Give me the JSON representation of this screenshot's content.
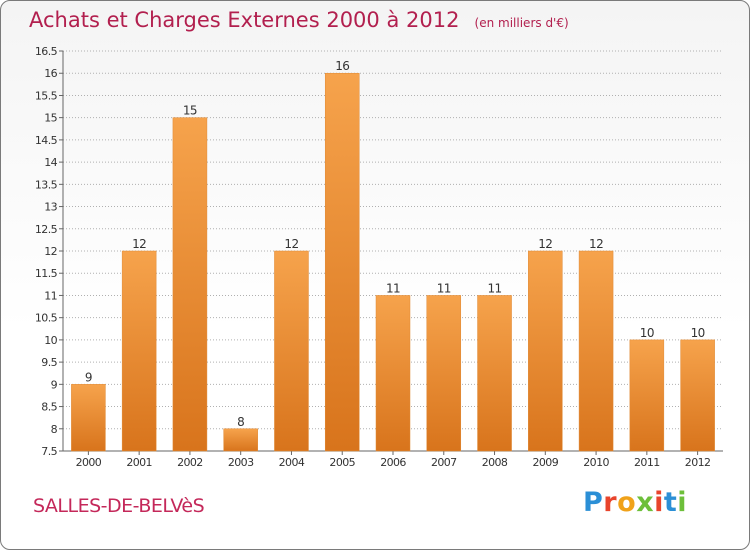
{
  "header": {
    "title": "Achats et Charges Externes 2000 à 2012",
    "unit": "(en milliers d'€)"
  },
  "footer": {
    "commune": "SALLES-DE-BELVèS",
    "logo_text": "Proxiti",
    "logo_colors": [
      "#2b8fd6",
      "#e8442c",
      "#f0a21a",
      "#6dbf3a",
      "#e8442c",
      "#2b8fd6",
      "#6dbf3a"
    ]
  },
  "colors": {
    "bar_top": "#f6a34c",
    "bar_bottom": "#d8741c",
    "grid": "#b0b0b0",
    "title": "#b21f4e"
  },
  "chart_data": {
    "type": "bar",
    "title": "Achats et Charges Externes 2000 à 2012",
    "unit": "(en milliers d'€)",
    "categories": [
      "2000",
      "2001",
      "2002",
      "2003",
      "2004",
      "2005",
      "2006",
      "2007",
      "2008",
      "2009",
      "2010",
      "2011",
      "2012"
    ],
    "values": [
      9,
      12,
      15,
      8,
      12,
      16,
      11,
      11,
      11,
      12,
      12,
      10,
      10
    ],
    "ylim": [
      7.5,
      16.5
    ],
    "yticks": [
      "7.5",
      "8",
      "8.5",
      "9",
      "9.5",
      "10",
      "10.5",
      "11",
      "11.5",
      "12",
      "12.5",
      "13",
      "13.5",
      "14",
      "14.5",
      "15",
      "15.5",
      "16",
      "16.5"
    ],
    "grid": true
  }
}
